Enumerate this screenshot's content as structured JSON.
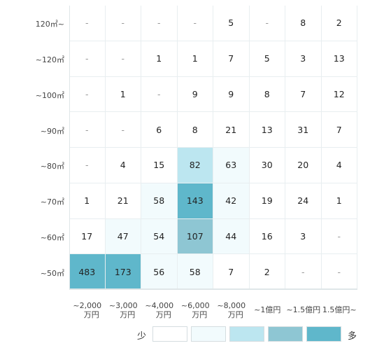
{
  "chart_data": {
    "type": "heatmap",
    "rows": [
      "120㎡~",
      "~120㎡",
      "~100㎡",
      "~90㎡",
      "~80㎡",
      "~70㎡",
      "~60㎡",
      "~50㎡"
    ],
    "columns": [
      [
        "~2,000",
        "万円"
      ],
      [
        "~3,000",
        "万円"
      ],
      [
        "~4,000",
        "万円"
      ],
      [
        "~6,000",
        "万円"
      ],
      [
        "~8,000",
        "万円"
      ],
      [
        "~1億円",
        ""
      ],
      [
        "~1.5億円",
        ""
      ],
      [
        "1.5億円~",
        ""
      ]
    ],
    "values": [
      [
        "-",
        "-",
        "-",
        "-",
        "5",
        "-",
        "8",
        "2"
      ],
      [
        "-",
        "-",
        "1",
        "1",
        "7",
        "5",
        "3",
        "13"
      ],
      [
        "-",
        "1",
        "-",
        "9",
        "9",
        "8",
        "7",
        "12"
      ],
      [
        "-",
        "-",
        "6",
        "8",
        "21",
        "13",
        "31",
        "7"
      ],
      [
        "-",
        "4",
        "15",
        "82",
        "63",
        "30",
        "20",
        "4"
      ],
      [
        "1",
        "21",
        "58",
        "143",
        "42",
        "19",
        "24",
        "1"
      ],
      [
        "17",
        "47",
        "54",
        "107",
        "44",
        "16",
        "3",
        "-"
      ],
      [
        "483",
        "173",
        "56",
        "58",
        "7",
        "2",
        "-",
        "-"
      ]
    ],
    "levels": [
      [
        0,
        0,
        0,
        0,
        0,
        0,
        0,
        0
      ],
      [
        0,
        0,
        0,
        0,
        0,
        0,
        0,
        0
      ],
      [
        0,
        0,
        0,
        0,
        0,
        0,
        0,
        0
      ],
      [
        0,
        0,
        0,
        0,
        0,
        0,
        0,
        0
      ],
      [
        0,
        0,
        0,
        2,
        1,
        0,
        0,
        0
      ],
      [
        0,
        0,
        1,
        4,
        1,
        0,
        0,
        0
      ],
      [
        0,
        1,
        1,
        3,
        1,
        0,
        0,
        0
      ],
      [
        4,
        4,
        1,
        1,
        0,
        0,
        0,
        0
      ]
    ],
    "palette": [
      "#ffffff",
      "#f2fbfd",
      "#bce6f0",
      "#8ec6d3",
      "#5fb7cb"
    ],
    "legend": {
      "low": "少",
      "high": "多"
    }
  }
}
